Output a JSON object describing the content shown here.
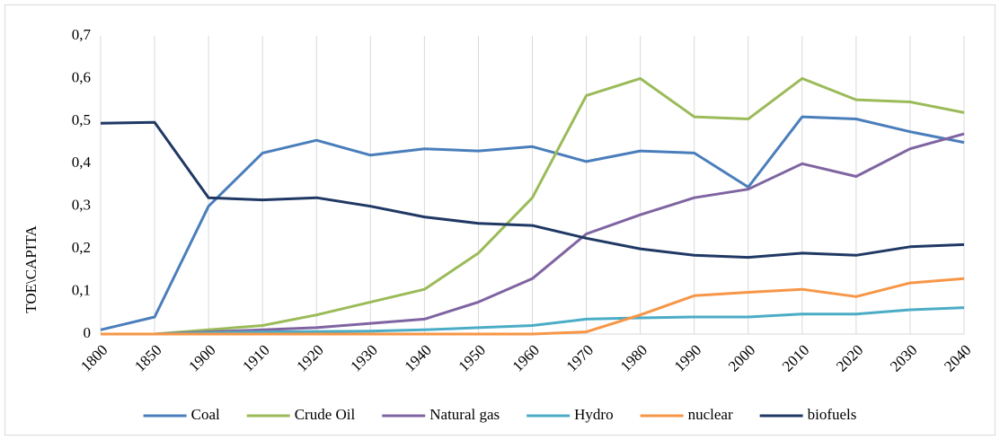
{
  "chart_data": {
    "type": "line",
    "ylabel": "TOE\\CAPITA",
    "categories": [
      "1800",
      "1850",
      "1900",
      "1910",
      "1920",
      "1930",
      "1940",
      "1950",
      "1960",
      "1970",
      "1980",
      "1990",
      "2000",
      "2010",
      "2020",
      "2030",
      "2040"
    ],
    "series": [
      {
        "name": "Coal",
        "color": "#4a7ebb",
        "values": [
          0.01,
          0.04,
          0.3,
          0.425,
          0.455,
          0.42,
          0.435,
          0.43,
          0.44,
          0.405,
          0.43,
          0.425,
          0.345,
          0.51,
          0.505,
          0.475,
          0.45
        ]
      },
      {
        "name": "Crude Oil",
        "color": "#9bbb59",
        "values": [
          0,
          0,
          0.01,
          0.02,
          0.045,
          0.075,
          0.105,
          0.19,
          0.32,
          0.56,
          0.6,
          0.51,
          0.505,
          0.6,
          0.55,
          0.545,
          0.52
        ]
      },
      {
        "name": "Natural gas",
        "color": "#8064a2",
        "values": [
          0,
          0,
          0.005,
          0.01,
          0.015,
          0.025,
          0.035,
          0.075,
          0.13,
          0.235,
          0.28,
          0.32,
          0.34,
          0.4,
          0.37,
          0.435,
          0.47
        ]
      },
      {
        "name": "Hydro",
        "color": "#4bacc6",
        "values": [
          0,
          0,
          0.003,
          0.005,
          0.006,
          0.007,
          0.01,
          0.015,
          0.02,
          0.035,
          0.038,
          0.04,
          0.04,
          0.047,
          0.047,
          0.057,
          0.062
        ]
      },
      {
        "name": "nuclear",
        "color": "#f79646",
        "values": [
          0,
          0,
          0,
          0,
          0,
          0,
          0,
          0,
          0,
          0.005,
          0.045,
          0.09,
          0.098,
          0.105,
          0.088,
          0.12,
          0.13
        ]
      },
      {
        "name": "biofuels",
        "color": "#1f3864",
        "values": [
          0.495,
          0.497,
          0.32,
          0.315,
          0.32,
          0.3,
          0.275,
          0.26,
          0.255,
          0.225,
          0.2,
          0.185,
          0.18,
          0.19,
          0.185,
          0.205,
          0.21
        ]
      }
    ],
    "ylim": [
      0,
      0.7
    ],
    "yticks": [
      0,
      {
        "value": 0.1,
        "label": "0,1"
      },
      {
        "value": 0.2,
        "label": "0,2"
      },
      {
        "value": 0.3,
        "label": "0,3"
      },
      {
        "value": 0.4,
        "label": "0,4"
      },
      {
        "value": 0.5,
        "label": "0,5"
      },
      {
        "value": 0.6,
        "label": "0,6"
      },
      {
        "value": 0.7,
        "label": "0,7"
      }
    ],
    "grid": true,
    "legend": "bottom"
  }
}
